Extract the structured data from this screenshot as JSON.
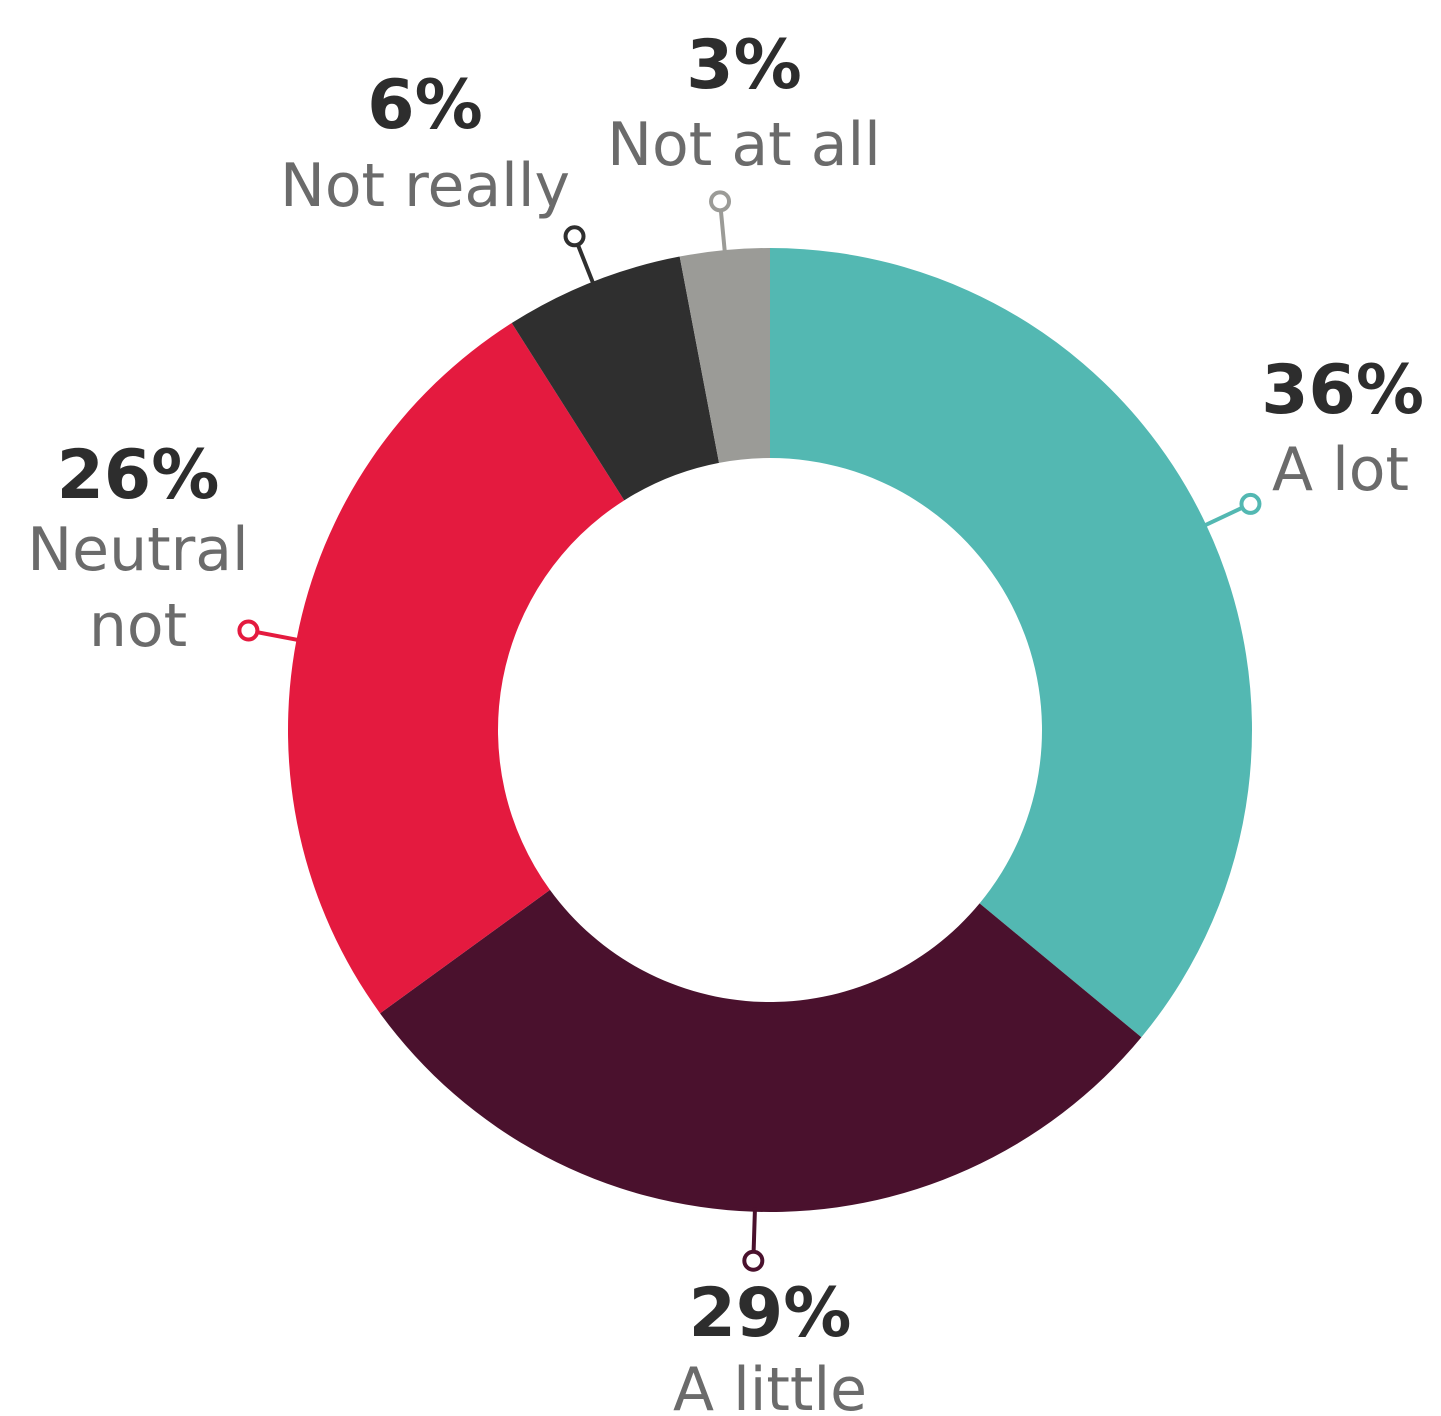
{
  "chart_data": {
    "type": "pie",
    "subtype": "donut",
    "start": "12 o'clock",
    "direction": "clockwise",
    "slices": [
      {
        "label": "A lot",
        "value": 36,
        "value_label": "36%",
        "color": "#53b8b2"
      },
      {
        "label": "A little",
        "value": 29,
        "value_label": "29%",
        "color": "#4a112d"
      },
      {
        "label": "Neutral not",
        "value": 26,
        "value_label": "26%",
        "color": "#e41a3f"
      },
      {
        "label": "Not really",
        "value": 6,
        "value_label": "6%",
        "color": "#2f2f2f"
      },
      {
        "label": "Not at all",
        "value": 3,
        "value_label": "3%",
        "color": "#9b9b97"
      }
    ]
  }
}
